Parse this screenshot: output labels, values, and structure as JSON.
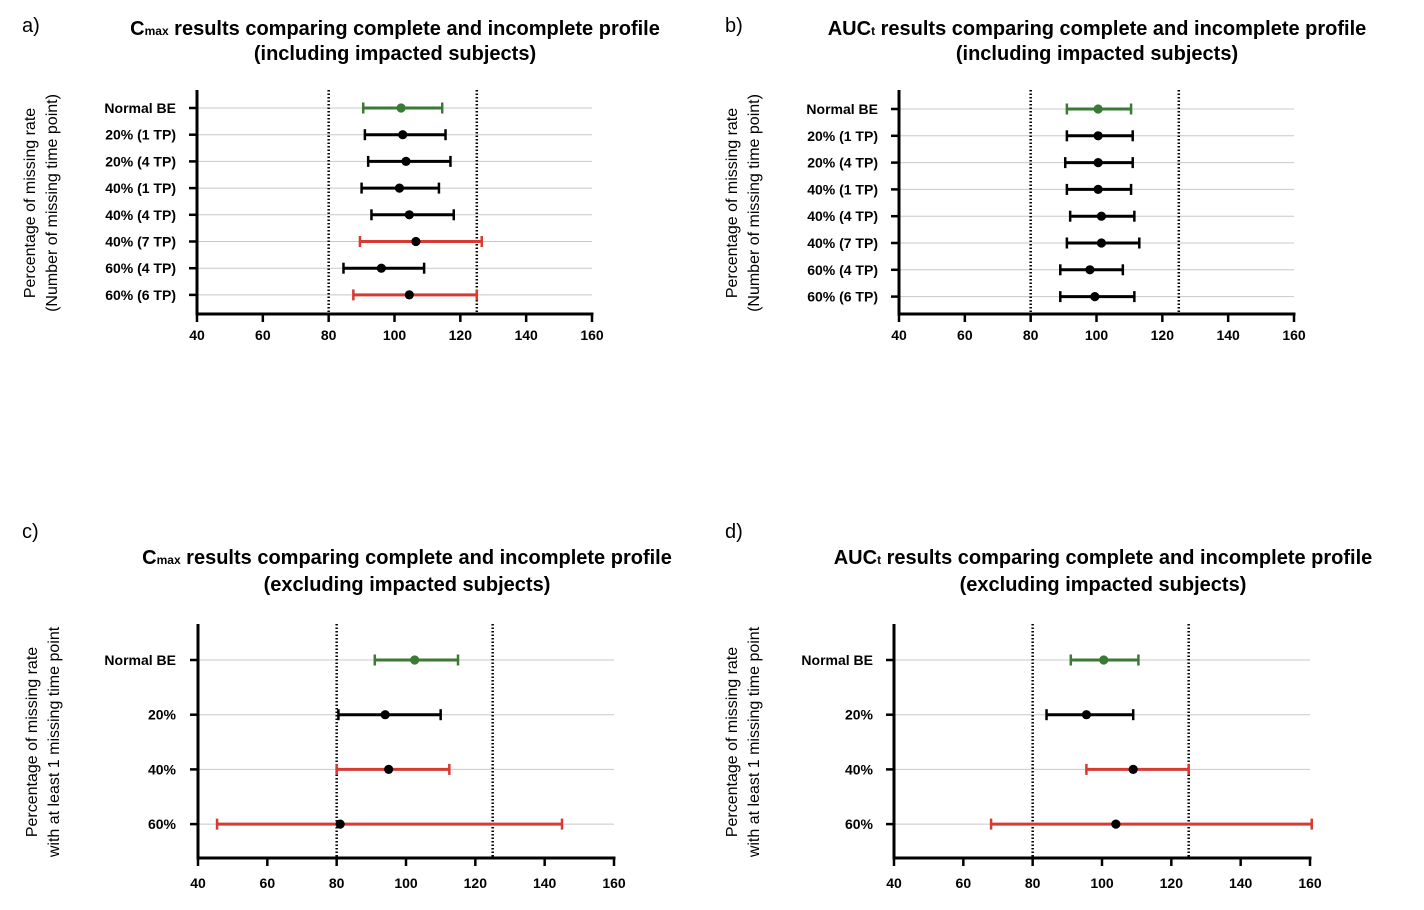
{
  "figure": {
    "background": "#ffffff"
  },
  "colors": {
    "normal": "#3a7a35",
    "black": "#000000",
    "red": "#d63a30",
    "grid": "#c8c8c8"
  },
  "chart_data": [
    {
      "panel_label": "a)",
      "type": "forest",
      "title_parts": [
        {
          "text": "C",
          "sub": false
        },
        {
          "text": "max",
          "sub": true
        },
        {
          "text": " results comparing complete and incomplete profile",
          "sub": false
        }
      ],
      "title_line2": "(including impacted subjects)",
      "ylabel": [
        "Percentage of missing rate",
        "(Number of missing time point)"
      ],
      "xlim": [
        40,
        160
      ],
      "xticks": [
        40,
        60,
        80,
        100,
        120,
        140,
        160
      ],
      "reference_lines": [
        80,
        125
      ],
      "categories": [
        {
          "label": "Normal BE",
          "point": 102,
          "low": 90.5,
          "high": 114.5,
          "color": "normal"
        },
        {
          "label": "20% (1 TP)",
          "point": 102.5,
          "low": 91,
          "high": 115.5,
          "color": "black"
        },
        {
          "label": "20% (4 TP)",
          "point": 103.5,
          "low": 92,
          "high": 117,
          "color": "black"
        },
        {
          "label": "40% (1 TP)",
          "point": 101.5,
          "low": 90,
          "high": 113.5,
          "color": "black"
        },
        {
          "label": "40% (4 TP)",
          "point": 104.5,
          "low": 93,
          "high": 118,
          "color": "black"
        },
        {
          "label": "40% (7 TP)",
          "point": 106.5,
          "low": 89.5,
          "high": 126.5,
          "color": "red"
        },
        {
          "label": "60% (4 TP)",
          "point": 96,
          "low": 84.5,
          "high": 109,
          "color": "black"
        },
        {
          "label": "60% (6 TP)",
          "point": 104.5,
          "low": 87.5,
          "high": 125,
          "color": "red"
        }
      ]
    },
    {
      "panel_label": "b)",
      "type": "forest",
      "title_parts": [
        {
          "text": "AUC",
          "sub": false
        },
        {
          "text": "t",
          "sub": true
        },
        {
          "text": " results comparing complete and incomplete profile",
          "sub": false
        }
      ],
      "title_line2": "(including impacted subjects)",
      "ylabel": [
        "Percentage of missing rate",
        "(Number of missing time point)"
      ],
      "xlim": [
        40,
        160
      ],
      "xticks": [
        40,
        60,
        80,
        100,
        120,
        140,
        160
      ],
      "reference_lines": [
        80,
        125
      ],
      "categories": [
        {
          "label": "Normal BE",
          "point": 100.5,
          "low": 91,
          "high": 110.5,
          "color": "normal"
        },
        {
          "label": "20% (1 TP)",
          "point": 100.5,
          "low": 91,
          "high": 111,
          "color": "black"
        },
        {
          "label": "20% (4 TP)",
          "point": 100.5,
          "low": 90.5,
          "high": 111,
          "color": "black"
        },
        {
          "label": "40% (1 TP)",
          "point": 100.5,
          "low": 91,
          "high": 110.5,
          "color": "black"
        },
        {
          "label": "40% (4 TP)",
          "point": 101.5,
          "low": 92,
          "high": 111.5,
          "color": "black"
        },
        {
          "label": "40% (7 TP)",
          "point": 101.5,
          "low": 91,
          "high": 113,
          "color": "black"
        },
        {
          "label": "60% (4 TP)",
          "point": 98,
          "low": 89,
          "high": 108,
          "color": "black"
        },
        {
          "label": "60% (6 TP)",
          "point": 99.5,
          "low": 89,
          "high": 111.5,
          "color": "black"
        }
      ]
    },
    {
      "panel_label": "c)",
      "type": "forest",
      "title_parts": [
        {
          "text": "C",
          "sub": false
        },
        {
          "text": "max",
          "sub": true
        },
        {
          "text": " results comparing complete and incomplete profile",
          "sub": false
        }
      ],
      "title_line2": "(excluding impacted subjects)",
      "ylabel": [
        "Percentage of missing rate",
        "with at least 1 missing time point"
      ],
      "xlim": [
        40,
        160
      ],
      "xticks": [
        40,
        60,
        80,
        100,
        120,
        140,
        160
      ],
      "reference_lines": [
        80,
        125
      ],
      "categories": [
        {
          "label": "Normal BE",
          "point": 102.5,
          "low": 91,
          "high": 115,
          "color": "normal"
        },
        {
          "label": "20%",
          "point": 94,
          "low": 80.5,
          "high": 110,
          "color": "black"
        },
        {
          "label": "40%",
          "point": 95,
          "low": 80,
          "high": 112.5,
          "color": "red"
        },
        {
          "label": "60%",
          "point": 81,
          "low": 45.5,
          "high": 145,
          "color": "red"
        }
      ]
    },
    {
      "panel_label": "d)",
      "type": "forest",
      "title_parts": [
        {
          "text": "AUC",
          "sub": false
        },
        {
          "text": "t",
          "sub": true
        },
        {
          "text": " results comparing complete and incomplete profile",
          "sub": false
        }
      ],
      "title_line2": "(excluding impacted subjects)",
      "ylabel": [
        "Percentage of missing rate",
        "with at least 1 missing time point"
      ],
      "xlim": [
        40,
        160
      ],
      "xticks": [
        40,
        60,
        80,
        100,
        120,
        140,
        160
      ],
      "reference_lines": [
        80,
        125
      ],
      "categories": [
        {
          "label": "Normal BE",
          "point": 100.5,
          "low": 91,
          "high": 110.5,
          "color": "normal"
        },
        {
          "label": "20%",
          "point": 95.5,
          "low": 84,
          "high": 109,
          "color": "black"
        },
        {
          "label": "40%",
          "point": 109,
          "low": 95.5,
          "high": 125,
          "color": "red"
        },
        {
          "label": "60%",
          "point": 104,
          "low": 68,
          "high": 160.5,
          "color": "red"
        }
      ]
    }
  ]
}
